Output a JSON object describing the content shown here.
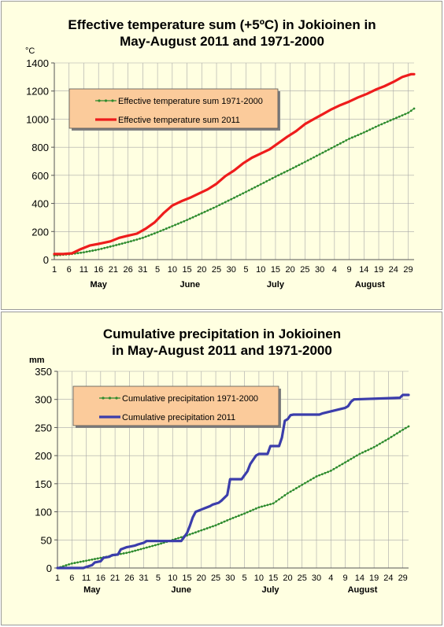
{
  "charts": {
    "temperature": {
      "title_line1": "Effective temperature sum (+5ºC) in Jokioinen in",
      "title_line2": "May-August 2011 and 1971-2000"
    },
    "precipitation": {
      "title_line1": "Cumulative precipitation in Jokioinen",
      "title_line2": "in May-August 2011 and 1971-2000"
    }
  },
  "chart_data": [
    {
      "type": "line",
      "title": "Effective temperature sum (+5ºC) in Jokioinen in May-August 2011 and 1971-2000",
      "ylabel": "°C",
      "ylim": [
        0,
        1400
      ],
      "yticks": [
        0,
        200,
        400,
        600,
        800,
        1000,
        1200,
        1400
      ],
      "xlim": [
        1,
        123
      ],
      "x_tick_positions": [
        1,
        6,
        11,
        16,
        21,
        26,
        31,
        36,
        41,
        46,
        51,
        56,
        61,
        66,
        71,
        76,
        81,
        86,
        91,
        96,
        101,
        106,
        111,
        116,
        121
      ],
      "x_tick_labels": [
        "1",
        "6",
        "11",
        "16",
        "21",
        "26",
        "31",
        "5",
        "10",
        "15",
        "20",
        "25",
        "30",
        "5",
        "10",
        "15",
        "20",
        "25",
        "30",
        "4",
        "9",
        "14",
        "19",
        "24",
        "29"
      ],
      "month_labels": [
        {
          "label": "May",
          "day": 16
        },
        {
          "label": "June",
          "day": 47
        },
        {
          "label": "July",
          "day": 76
        },
        {
          "label": "August",
          "day": 108
        }
      ],
      "grid": true,
      "legend_position": "upper-left",
      "series": [
        {
          "name": "Effective temperature sum 1971-2000",
          "color": "#2e8b2e",
          "marker": "dot",
          "x": [
            1,
            6,
            11,
            16,
            21,
            26,
            31,
            36,
            41,
            46,
            51,
            56,
            61,
            66,
            71,
            76,
            81,
            86,
            91,
            96,
            101,
            106,
            111,
            116,
            121,
            123
          ],
          "y": [
            30,
            38,
            52,
            72,
            98,
            125,
            155,
            195,
            238,
            282,
            330,
            378,
            430,
            482,
            536,
            590,
            642,
            695,
            750,
            805,
            860,
            905,
            955,
            1000,
            1045,
            1075
          ]
        },
        {
          "name": "Effective temperature sum 2011",
          "color": "#ee1c1c",
          "x": [
            1,
            4,
            7,
            10,
            13,
            16,
            20,
            23,
            26,
            29,
            32,
            35,
            38,
            41,
            44,
            47,
            50,
            53,
            56,
            59,
            62,
            65,
            68,
            71,
            74,
            77,
            80,
            83,
            86,
            89,
            92,
            95,
            98,
            101,
            104,
            107,
            110,
            113,
            116,
            119,
            122,
            123
          ],
          "y": [
            40,
            40,
            45,
            75,
            100,
            112,
            130,
            155,
            170,
            185,
            220,
            265,
            330,
            385,
            415,
            440,
            470,
            500,
            540,
            595,
            635,
            685,
            725,
            755,
            785,
            830,
            875,
            915,
            965,
            1000,
            1035,
            1070,
            1100,
            1125,
            1155,
            1180,
            1210,
            1235,
            1265,
            1300,
            1320,
            1320
          ]
        }
      ]
    },
    {
      "type": "line",
      "title": "Cumulative precipitation in Jokioinen in May-August 2011 and 1971-2000",
      "ylabel": "mm",
      "ylim": [
        0,
        350
      ],
      "yticks": [
        0,
        50,
        100,
        150,
        200,
        250,
        300,
        350
      ],
      "xlim": [
        1,
        123
      ],
      "x_tick_positions": [
        1,
        6,
        11,
        16,
        21,
        26,
        31,
        36,
        41,
        46,
        51,
        56,
        61,
        66,
        71,
        76,
        81,
        86,
        91,
        96,
        101,
        106,
        111,
        116,
        121
      ],
      "x_tick_labels": [
        "1",
        "6",
        "11",
        "16",
        "21",
        "26",
        "31",
        "5",
        "10",
        "15",
        "20",
        "25",
        "30",
        "5",
        "10",
        "15",
        "20",
        "25",
        "30",
        "4",
        "9",
        "14",
        "19",
        "24",
        "29"
      ],
      "month_labels": [
        {
          "label": "May",
          "day": 13
        },
        {
          "label": "June",
          "day": 44
        },
        {
          "label": "July",
          "day": 75
        },
        {
          "label": "August",
          "day": 107
        }
      ],
      "grid": true,
      "legend_position": "upper-left",
      "series": [
        {
          "name": "Cumulative precipitation 1971-2000",
          "color": "#2e8b2e",
          "marker": "dot",
          "x": [
            1,
            6,
            11,
            16,
            21,
            26,
            31,
            36,
            41,
            46,
            51,
            56,
            61,
            66,
            71,
            76,
            81,
            86,
            91,
            96,
            101,
            106,
            111,
            116,
            121,
            123
          ],
          "y": [
            0,
            8,
            13,
            18,
            23,
            28,
            35,
            42,
            50,
            58,
            67,
            76,
            87,
            97,
            108,
            115,
            133,
            148,
            163,
            173,
            188,
            203,
            215,
            230,
            246,
            252
          ]
        },
        {
          "name": "Cumulative precipitation 2011",
          "color": "#3b3dab",
          "x": [
            1,
            10,
            11,
            13,
            14,
            16,
            17,
            19,
            20,
            22,
            23,
            25,
            26,
            28,
            29,
            31,
            32,
            37,
            38,
            44,
            45,
            46,
            47,
            48,
            49,
            51,
            52,
            54,
            55,
            57,
            58,
            60,
            61,
            65,
            66,
            67,
            68,
            70,
            71,
            74,
            75,
            78,
            79,
            80,
            81,
            82,
            83,
            92,
            93,
            101,
            102,
            103,
            104,
            120,
            121,
            123
          ],
          "y": [
            0,
            0,
            2,
            5,
            10,
            12,
            18,
            20,
            23,
            24,
            33,
            37,
            38,
            40,
            42,
            45,
            48,
            48,
            48,
            48,
            55,
            62,
            75,
            90,
            100,
            104,
            106,
            110,
            113,
            116,
            120,
            130,
            158,
            158,
            165,
            172,
            185,
            200,
            203,
            203,
            217,
            217,
            232,
            262,
            265,
            272,
            273,
            273,
            275,
            285,
            288,
            296,
            300,
            303,
            308,
            308
          ]
        }
      ]
    }
  ]
}
